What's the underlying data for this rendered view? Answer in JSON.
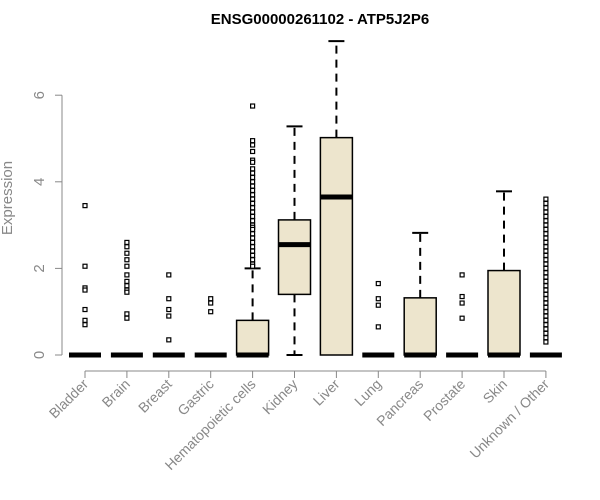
{
  "chart_data": {
    "type": "box",
    "title": "ENSG00000261102 - ATP5J2P6",
    "ylabel": "Expression",
    "xlabel": "",
    "ylim": [
      0,
      7.3
    ],
    "yticks": [
      0,
      2,
      4,
      6
    ],
    "box_color": "#ede5cd",
    "categories": [
      "Bladder",
      "Brain",
      "Breast",
      "Gastric",
      "Hematopoietic cells",
      "Kidney",
      "Liver",
      "Lung",
      "Pancreas",
      "Prostate",
      "Skin",
      "Unknown / Other"
    ],
    "boxes": [
      {
        "category": "Bladder",
        "q1": 0,
        "median": 0,
        "q3": 0,
        "whisker_low": 0,
        "whisker_high": 0,
        "outliers": [
          3.45,
          2.05,
          1.55,
          1.5,
          1.05,
          0.8,
          0.7
        ]
      },
      {
        "category": "Brain",
        "q1": 0,
        "median": 0,
        "q3": 0,
        "whisker_low": 0,
        "whisker_high": 0,
        "outliers": [
          2.6,
          2.5,
          2.35,
          2.2,
          2.05,
          1.85,
          1.7,
          1.6,
          1.5,
          1.45,
          0.95,
          0.85
        ]
      },
      {
        "category": "Breast",
        "q1": 0,
        "median": 0,
        "q3": 0,
        "whisker_low": 0,
        "whisker_high": 0,
        "outliers": [
          1.85,
          1.3,
          1.05,
          0.9,
          0.35
        ]
      },
      {
        "category": "Gastric",
        "q1": 0,
        "median": 0,
        "q3": 0,
        "whisker_low": 0,
        "whisker_high": 0,
        "outliers": [
          1.3,
          1.2,
          1.0
        ]
      },
      {
        "category": "Hematopoietic cells",
        "q1": 0,
        "median": 0,
        "q3": 0.8,
        "whisker_low": 0,
        "whisker_high": 2.0,
        "outliers": [
          5.75,
          4.95,
          4.85,
          4.7,
          4.5,
          4.45,
          4.3,
          4.2,
          4.1,
          4.0,
          3.9,
          3.8,
          3.7,
          3.6,
          3.5,
          3.4,
          3.3,
          3.2,
          3.1,
          3.0,
          2.95,
          2.9,
          2.8,
          2.7,
          2.6,
          2.5,
          2.4,
          2.3,
          2.2,
          2.1,
          2.05
        ]
      },
      {
        "category": "Kidney",
        "q1": 1.4,
        "median": 2.55,
        "q3": 3.12,
        "whisker_low": 0,
        "whisker_high": 5.28,
        "outliers": []
      },
      {
        "category": "Liver",
        "q1": 0,
        "median": 3.65,
        "q3": 5.02,
        "whisker_low": 0,
        "whisker_high": 7.25,
        "outliers": []
      },
      {
        "category": "Lung",
        "q1": 0,
        "median": 0,
        "q3": 0,
        "whisker_low": 0,
        "whisker_high": 0,
        "outliers": [
          1.65,
          1.3,
          1.15,
          0.65
        ]
      },
      {
        "category": "Pancreas",
        "q1": 0,
        "median": 0,
        "q3": 1.32,
        "whisker_low": 0,
        "whisker_high": 2.82,
        "outliers": []
      },
      {
        "category": "Prostate",
        "q1": 0,
        "median": 0,
        "q3": 0,
        "whisker_low": 0,
        "whisker_high": 0,
        "outliers": [
          1.85,
          1.35,
          1.2,
          0.85
        ]
      },
      {
        "category": "Skin",
        "q1": 0,
        "median": 0,
        "q3": 1.95,
        "whisker_low": 0,
        "whisker_high": 3.78,
        "outliers": []
      },
      {
        "category": "Unknown / Other",
        "q1": 0,
        "median": 0,
        "q3": 0,
        "whisker_low": 0,
        "whisker_high": 0,
        "outliers": [
          3.6,
          3.5,
          3.4,
          3.3,
          3.2,
          3.1,
          3.0,
          2.9,
          2.8,
          2.7,
          2.6,
          2.5,
          2.4,
          2.3,
          2.2,
          2.1,
          2.0,
          1.9,
          1.8,
          1.7,
          1.6,
          1.5,
          1.4,
          1.3,
          1.2,
          1.1,
          1.0,
          0.9,
          0.8,
          0.7,
          0.6,
          0.5,
          0.4,
          0.3
        ]
      }
    ]
  }
}
